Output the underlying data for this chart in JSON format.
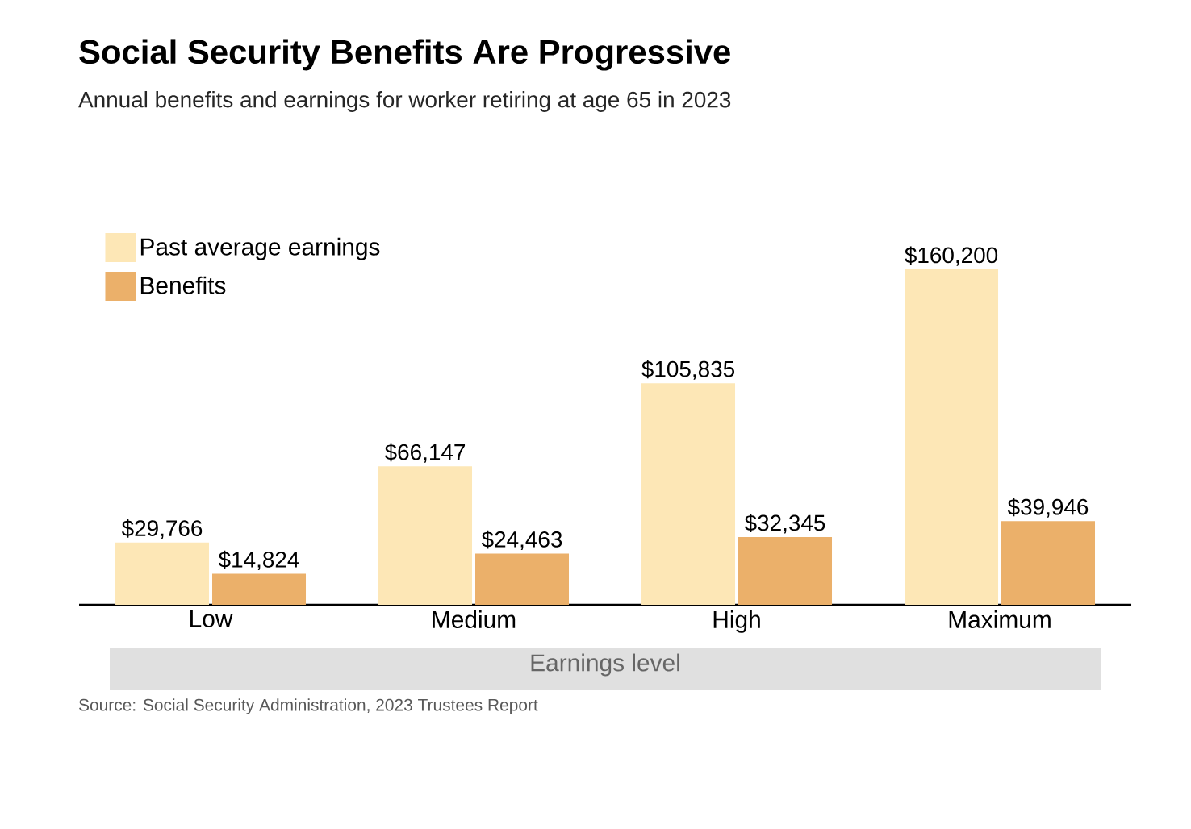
{
  "chart_data": {
    "type": "bar",
    "title": "Social Security Benefits Are Progressive",
    "subtitle": "Annual benefits and earnings for worker retiring at age 65 in 2023",
    "xlabel": "Earnings level",
    "categories": [
      "Low",
      "Medium",
      "High",
      "Maximum"
    ],
    "series": [
      {
        "name": "Past average earnings",
        "color": "#fde7b6",
        "values": [
          29766,
          66147,
          105835,
          160200
        ],
        "value_labels": [
          "$29,766",
          "$66,147",
          "$105,835",
          "$160,200"
        ]
      },
      {
        "name": "Benefits",
        "color": "#ebb06a",
        "values": [
          14824,
          24463,
          32345,
          39946
        ],
        "value_labels": [
          "$14,824",
          "$24,463",
          "$32,345",
          "$39,946"
        ]
      }
    ],
    "legend": "top left",
    "annotations": [
      "Source: Social Security Administration, 2023 Trustees Report"
    ]
  }
}
